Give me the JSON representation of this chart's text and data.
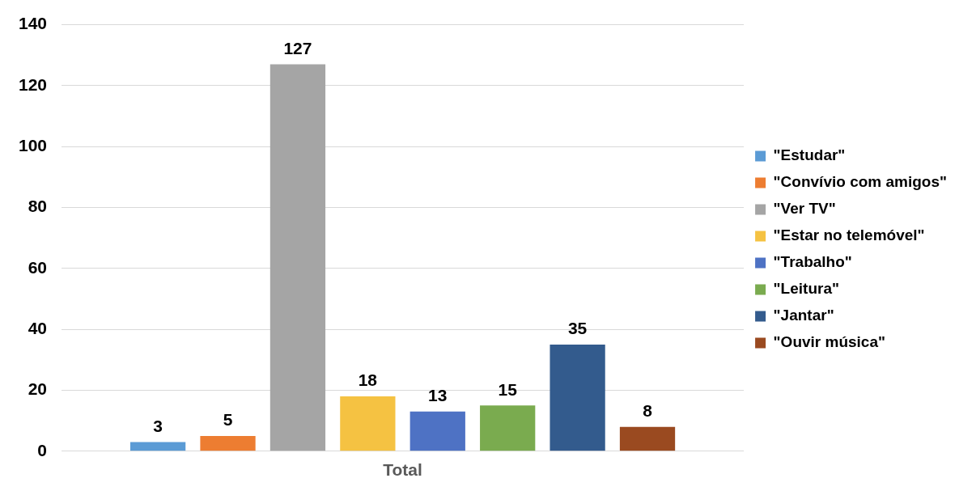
{
  "chart_data": {
    "type": "bar",
    "categories": [
      "Total"
    ],
    "series": [
      {
        "name": "\"Estudar\"",
        "color": "#5b9bd5",
        "values": [
          3
        ]
      },
      {
        "name": "\"Convívio com amigos\"",
        "color": "#ed7d31",
        "values": [
          5
        ]
      },
      {
        "name": "\"Ver TV\"",
        "color": "#a5a5a5",
        "values": [
          127
        ]
      },
      {
        "name": "\"Estar no telemóvel\"",
        "color": "#f5c242",
        "values": [
          18
        ]
      },
      {
        "name": "\"Trabalho\"",
        "color": "#4e72c4",
        "values": [
          13
        ]
      },
      {
        "name": "\"Leitura\"",
        "color": "#7aab4f",
        "values": [
          15
        ]
      },
      {
        "name": "\"Jantar\"",
        "color": "#335b8d",
        "values": [
          35
        ]
      },
      {
        "name": "\"Ouvir música\"",
        "color": "#9a4a20",
        "values": [
          8
        ]
      }
    ],
    "ylim": [
      0,
      140
    ],
    "yticks": [
      0,
      20,
      40,
      60,
      80,
      100,
      120,
      140
    ],
    "grid": "y",
    "legend": "right",
    "data_labels": true
  }
}
